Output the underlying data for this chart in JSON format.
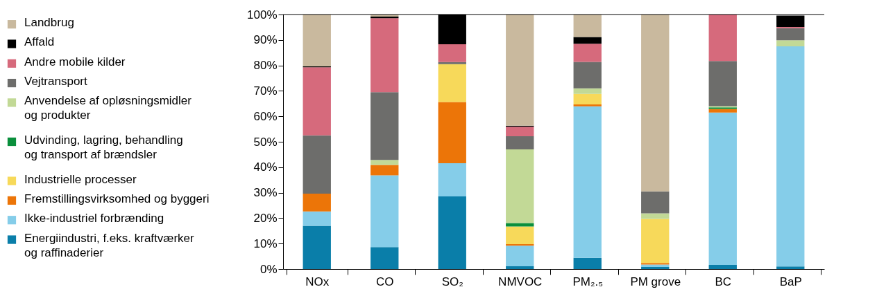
{
  "chart_data": {
    "type": "bar",
    "stacked": true,
    "legend": "left",
    "categories": [
      "NOx",
      "CO",
      "SO₂",
      "NMVOC",
      "PM₂.₅",
      "PM grove",
      "BC",
      "BaP"
    ],
    "ylim": [
      0,
      100
    ],
    "yticks": [
      {
        "value": 0,
        "label": "0%"
      },
      {
        "value": 10,
        "label": "10%"
      },
      {
        "value": 20,
        "label": "20%"
      },
      {
        "value": 30,
        "label": "30%"
      },
      {
        "value": 40,
        "label": "40%"
      },
      {
        "value": 50,
        "label": "50%"
      },
      {
        "value": 60,
        "label": "60%"
      },
      {
        "value": 70,
        "label": "70%"
      },
      {
        "value": 80,
        "label": "80%"
      },
      {
        "value": 90,
        "label": "90%"
      },
      {
        "value": 100,
        "label": "100%"
      }
    ],
    "grid": false,
    "series": [
      {
        "name": "Energiindustri, f.eks. kraftværker og raffinaderier",
        "color": "#0a7ea9",
        "values": [
          17,
          8.6,
          28.5,
          1.1,
          4.4,
          0.8,
          1.6,
          1
        ]
      },
      {
        "name": "Ikke-industriel forbrænding",
        "color": "#85cde9",
        "values": [
          5.6,
          28.2,
          13.1,
          8.1,
          59.5,
          1,
          59.9,
          86.5
        ]
      },
      {
        "name": "Fremstillingsvirksomhed og byggeri",
        "color": "#ec7508",
        "values": [
          7,
          4.1,
          24,
          0.6,
          0.8,
          0.6,
          1.4,
          0
        ]
      },
      {
        "name": "Industrielle processer",
        "color": "#f7d95a",
        "values": [
          0,
          0,
          14.9,
          6.9,
          4.1,
          17.3,
          0,
          0
        ]
      },
      {
        "name": "Udvinding, lagring, behandling og transport af brændsler",
        "color": "#0a8f3c",
        "values": [
          0,
          0,
          0,
          1.4,
          0,
          0,
          0.6,
          0
        ]
      },
      {
        "name": "Anvendelse af opløsningsmidler og produkter",
        "color": "#c2d996",
        "values": [
          0,
          2,
          0,
          28.9,
          2.2,
          2.2,
          0.5,
          2.4
        ]
      },
      {
        "name": "Vejtransport",
        "color": "#6d6d6b",
        "values": [
          22.9,
          26.6,
          0.8,
          5.2,
          10.4,
          8.6,
          17.7,
          4.7
        ]
      },
      {
        "name": "Andre mobile kilder",
        "color": "#d66a7c",
        "values": [
          26.8,
          29.1,
          7,
          3.7,
          7.1,
          0,
          18.3,
          0.5
        ]
      },
      {
        "name": "Affald",
        "color": "#000000",
        "values": [
          0.3,
          0.6,
          11.7,
          0.4,
          2.7,
          0,
          0,
          4.5
        ]
      },
      {
        "name": "Landbrug",
        "color": "#c9b99e",
        "values": [
          20.4,
          0.8,
          0,
          43.7,
          8.8,
          69.5,
          0,
          0
        ]
      }
    ]
  }
}
